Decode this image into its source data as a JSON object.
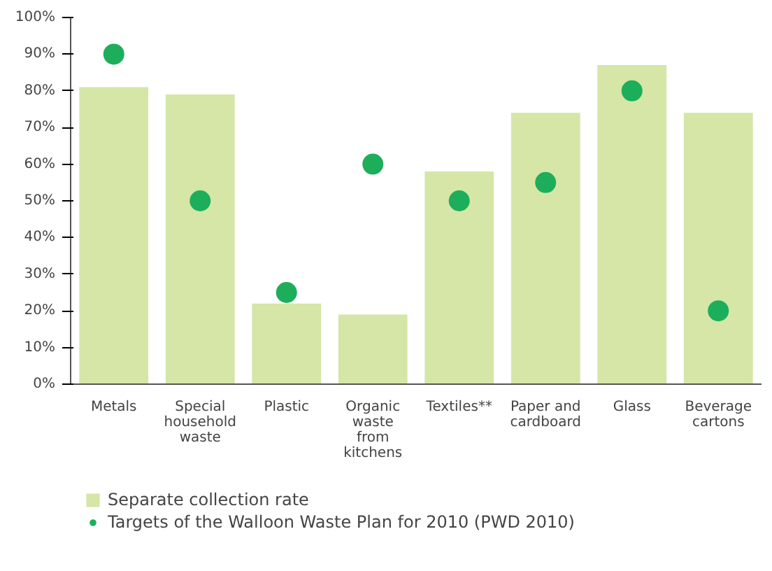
{
  "chart_data": {
    "type": "bar",
    "categories": [
      "Metals",
      "Special household waste",
      "Plastic",
      "Organic waste from kitchens",
      "Textiles**",
      "Paper and cardboard",
      "Glass",
      "Beverage cartons"
    ],
    "series": [
      {
        "name": "Separate collection rate",
        "color": "#d5e6a7",
        "values": [
          81,
          79,
          22,
          19,
          58,
          74,
          87,
          74
        ]
      },
      {
        "name": "Targets of the Walloon Waste Plan for 2010 (PWD 2010)",
        "type": "scatter",
        "color": "#1dae5b",
        "marker": "circle",
        "x": [
          "Metals",
          "Special household waste",
          "Plastic",
          "Organic waste from kitchens",
          "Textiles**",
          "Paper and cardboard",
          "Glass",
          "Beverage cartons"
        ],
        "values": [
          90,
          50,
          25,
          60,
          50,
          55,
          80,
          20
        ]
      }
    ],
    "ylim": [
      0,
      100
    ],
    "yticks": [
      {
        "value": 0,
        "label": "0%"
      },
      {
        "value": 10,
        "label": "10%"
      },
      {
        "value": 20,
        "label": "20%"
      },
      {
        "value": 30,
        "label": "30%"
      },
      {
        "value": 40,
        "label": "40%"
      },
      {
        "value": 50,
        "label": "50%"
      },
      {
        "value": 60,
        "label": "60%"
      },
      {
        "value": 70,
        "label": "70%"
      },
      {
        "value": 80,
        "label": "80%"
      },
      {
        "value": 90,
        "label": "90%"
      },
      {
        "value": 100,
        "label": "100%"
      }
    ],
    "grid": false,
    "legend": "bottom"
  }
}
